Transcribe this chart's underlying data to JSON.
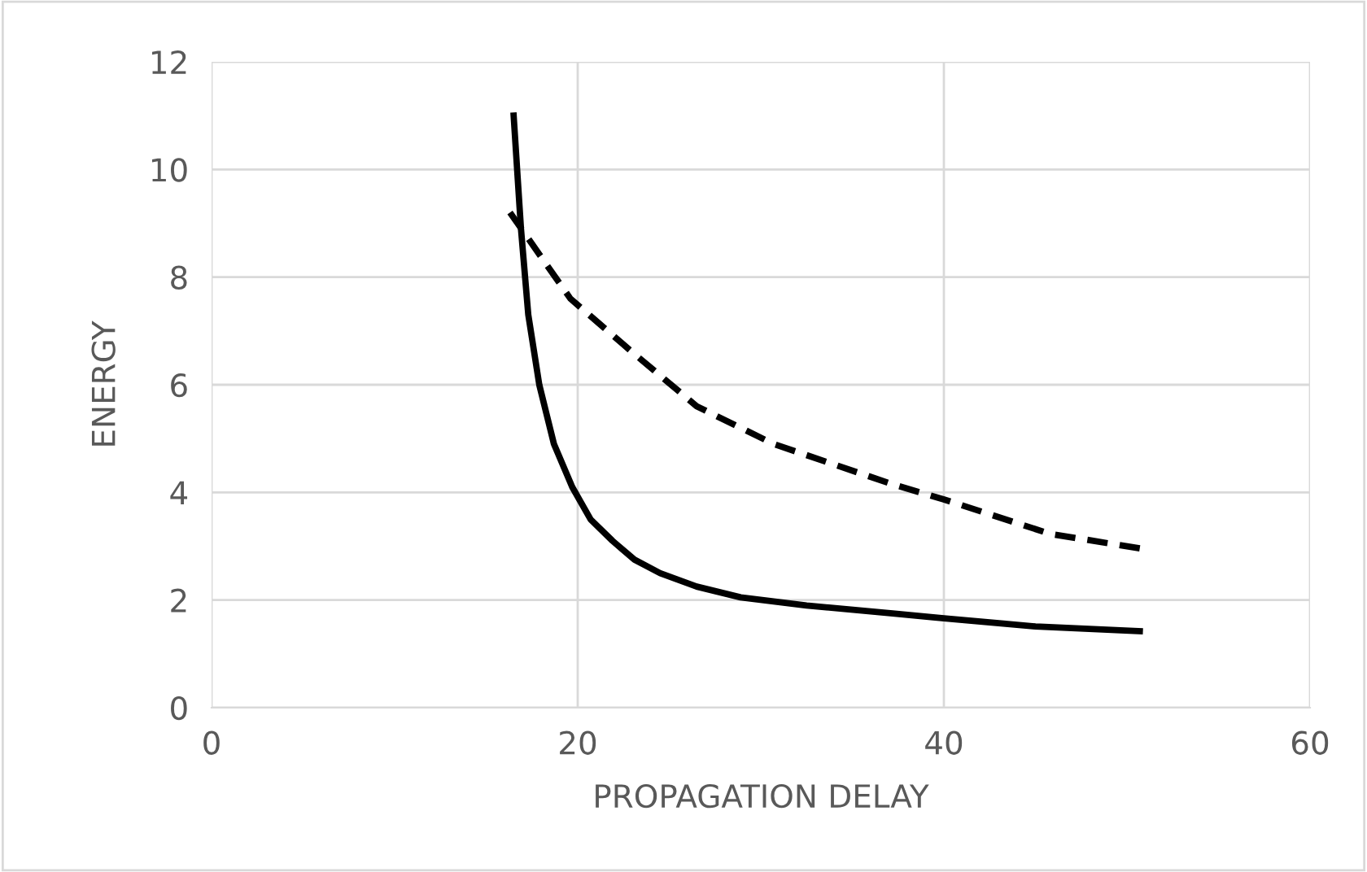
{
  "chart_data": {
    "type": "line",
    "xlabel": "PROPAGATION DELAY",
    "ylabel": "ENERGY",
    "xlim": [
      0,
      60
    ],
    "xticks": [
      0,
      20,
      40,
      60
    ],
    "ylim": [
      0,
      12
    ],
    "yticks": [
      0,
      2,
      4,
      6,
      8,
      10,
      12
    ],
    "grid": true,
    "marker": "none",
    "series": [
      {
        "color": "#000000",
        "line_style": "solid",
        "x": [
          16.5,
          16.9,
          17.3,
          17.9,
          18.7,
          19.7,
          20.7,
          21.9,
          23.1,
          24.5,
          26.5,
          28.9,
          32.5,
          37.2,
          40,
          45,
          50.7
        ],
        "values": [
          11.0,
          8.9,
          7.3,
          6.0,
          4.9,
          4.1,
          3.5,
          3.1,
          2.75,
          2.5,
          2.25,
          2.05,
          1.9,
          1.75,
          1.66,
          1.51,
          1.42
        ]
      },
      {
        "color": "#000000",
        "line_style": "dashed",
        "x": [
          16.3,
          19.6,
          23,
          26.5,
          30.7,
          37.2,
          40,
          45.8,
          50.7
        ],
        "values": [
          9.2,
          7.6,
          6.6,
          5.6,
          4.9,
          4.15,
          3.87,
          3.23,
          2.96
        ]
      }
    ]
  }
}
